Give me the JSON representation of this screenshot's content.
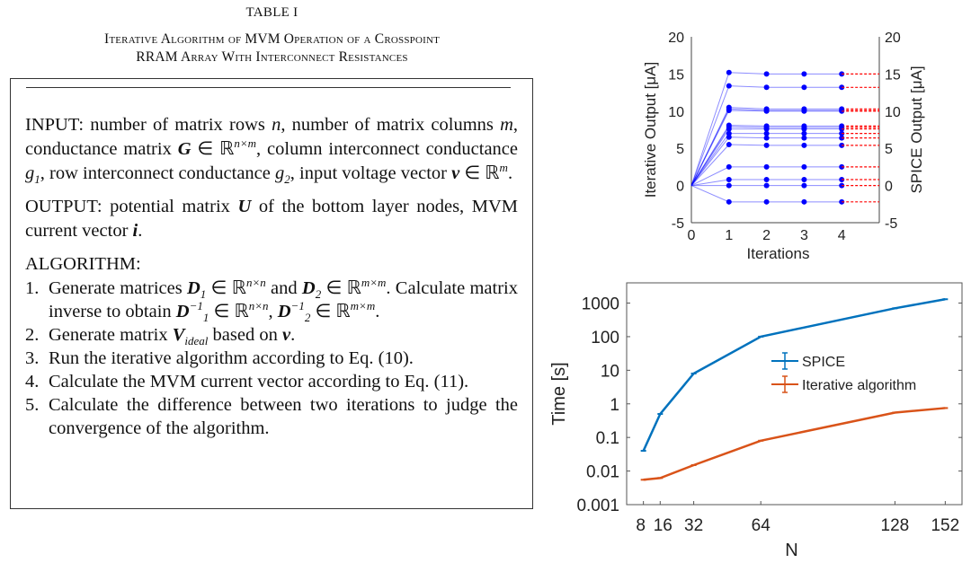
{
  "table": {
    "label": "TABLE I",
    "title_line1": "Iterative Algorithm of MVM Operation of a Crosspoint",
    "title_line2": "RRAM Array With Interconnect Resistances",
    "paragraphs": [
      [
        [
          "t",
          "INPUT: number of matrix rows "
        ],
        [
          "i",
          "n"
        ],
        [
          "t",
          ", number of matrix columns "
        ],
        [
          "i",
          "m"
        ],
        [
          "t",
          ", conductance matrix "
        ],
        [
          "b",
          "G"
        ],
        [
          "t",
          " ∈ ℝ"
        ],
        [
          "sup",
          "n×m"
        ],
        [
          "t",
          ", column interconnect conductance "
        ],
        [
          "i",
          "g"
        ],
        [
          "sub",
          "1"
        ],
        [
          "t",
          ", row interconnect conductance "
        ],
        [
          "i",
          "g"
        ],
        [
          "sub",
          "2"
        ],
        [
          "t",
          ", input voltage vector "
        ],
        [
          "b",
          "v"
        ],
        [
          "t",
          " ∈ ℝ"
        ],
        [
          "sup",
          "m"
        ],
        [
          "t",
          "."
        ]
      ],
      [
        [
          "t",
          "OUTPUT: potential matrix "
        ],
        [
          "b",
          "U"
        ],
        [
          "t",
          " of the bottom layer nodes, MVM current vector "
        ],
        [
          "b",
          "i"
        ],
        [
          "t",
          "."
        ]
      ],
      [
        [
          "t",
          "ALGORITHM:"
        ]
      ]
    ],
    "steps": [
      {
        "num": "1.",
        "segments": [
          [
            "t",
            "Generate matrices "
          ],
          [
            "b",
            "D"
          ],
          [
            "sub",
            "1"
          ],
          [
            "t",
            " ∈ ℝ"
          ],
          [
            "sup",
            "n×n"
          ],
          [
            "t",
            " and "
          ],
          [
            "b",
            "D"
          ],
          [
            "sub",
            "2"
          ],
          [
            "t",
            " ∈ ℝ"
          ],
          [
            "sup",
            "m×m"
          ],
          [
            "t",
            ". Calculate matrix inverse to obtain "
          ],
          [
            "b",
            "D"
          ],
          [
            "sup",
            "−1"
          ],
          [
            "sub",
            "1"
          ],
          [
            "t",
            " ∈ ℝ"
          ],
          [
            "sup",
            "n×n"
          ],
          [
            "t",
            ", "
          ],
          [
            "b",
            "D"
          ],
          [
            "sup",
            "−1"
          ],
          [
            "sub",
            "2"
          ],
          [
            "t",
            " ∈ ℝ"
          ],
          [
            "sup",
            "m×m"
          ],
          [
            "t",
            "."
          ]
        ]
      },
      {
        "num": "2.",
        "segments": [
          [
            "t",
            "Generate matrix "
          ],
          [
            "b",
            "V"
          ],
          [
            "sub",
            "ideal"
          ],
          [
            "t",
            " based on "
          ],
          [
            "b",
            "v"
          ],
          [
            "t",
            "."
          ]
        ]
      },
      {
        "num": "3.",
        "segments": [
          [
            "t",
            "Run the iterative algorithm according to Eq. (10)."
          ]
        ]
      },
      {
        "num": "4.",
        "segments": [
          [
            "t",
            "Calculate the MVM current vector according to Eq. (11)."
          ]
        ]
      },
      {
        "num": "5.",
        "segments": [
          [
            "t",
            "Calculate the difference between two iterations to judge the convergence of the algorithm."
          ]
        ]
      }
    ]
  },
  "chart_data": [
    {
      "type": "line",
      "xlabel": "Iterations",
      "ylabel": "Iterative Output [μA]",
      "y2label": "SPICE Output [μA]",
      "xlim": [
        0,
        5
      ],
      "ylim": [
        -5,
        20
      ],
      "xticks": [
        0,
        1,
        2,
        3,
        4
      ],
      "yticks": [
        -5,
        0,
        5,
        10,
        15,
        20
      ],
      "x": [
        0,
        1,
        2,
        3,
        4
      ],
      "series_color": "#0000ff",
      "spice_color": "#ff0000",
      "series": [
        {
          "values": [
            0,
            15.2,
            15.0,
            15.0,
            15.0
          ],
          "spice": 15.0
        },
        {
          "values": [
            0,
            13.4,
            13.2,
            13.2,
            13.2
          ],
          "spice": 13.2
        },
        {
          "values": [
            0,
            10.5,
            10.3,
            10.3,
            10.3
          ],
          "spice": 10.3
        },
        {
          "values": [
            0,
            10.3,
            10.1,
            10.1,
            10.1
          ],
          "spice": 10.1
        },
        {
          "values": [
            0,
            10.1,
            10.0,
            10.0,
            10.0
          ],
          "spice": 10.0
        },
        {
          "values": [
            0,
            8.1,
            8.0,
            8.0,
            8.0
          ],
          "spice": 8.0
        },
        {
          "values": [
            0,
            7.9,
            7.8,
            7.8,
            7.8
          ],
          "spice": 7.8
        },
        {
          "values": [
            0,
            7.6,
            7.6,
            7.6,
            7.6
          ],
          "spice": 7.6
        },
        {
          "values": [
            0,
            7.0,
            7.0,
            7.0,
            7.0
          ],
          "spice": 7.0
        },
        {
          "values": [
            0,
            6.5,
            6.4,
            6.4,
            6.4
          ],
          "spice": 6.4
        },
        {
          "values": [
            0,
            5.5,
            5.4,
            5.4,
            5.4
          ],
          "spice": 5.4
        },
        {
          "values": [
            0,
            2.5,
            2.5,
            2.5,
            2.5
          ],
          "spice": 2.5
        },
        {
          "values": [
            0,
            0.8,
            0.8,
            0.8,
            0.8
          ],
          "spice": 0.8
        },
        {
          "values": [
            0,
            0.0,
            0.0,
            0.0,
            0.0
          ],
          "spice": 0.0
        },
        {
          "values": [
            0,
            -2.2,
            -2.2,
            -2.2,
            -2.2
          ],
          "spice": -2.2
        }
      ]
    },
    {
      "type": "line",
      "xlabel": "N",
      "ylabel": "Time [s]",
      "yscale": "log",
      "xlim": [
        0,
        160
      ],
      "ylim": [
        0.001,
        4000
      ],
      "xticks": [
        8,
        16,
        32,
        64,
        128,
        152
      ],
      "xticklabels": [
        "8",
        "16",
        "32",
        "64",
        "128",
        "152"
      ],
      "yticks": [
        0.001,
        0.01,
        0.1,
        1,
        10,
        100,
        1000
      ],
      "yticklabels": [
        "0.001",
        "0.01",
        "0.1",
        "1",
        "10",
        "100",
        "1000"
      ],
      "x": [
        8,
        16,
        32,
        64,
        128,
        152
      ],
      "legend": "center-right",
      "series": [
        {
          "name": "SPICE",
          "color": "#0072bd",
          "values": [
            0.04,
            0.5,
            8,
            100,
            700,
            1300
          ]
        },
        {
          "name": "Iterative algorithm",
          "color": "#d95319",
          "values": [
            0.0055,
            0.0062,
            0.015,
            0.08,
            0.55,
            0.75
          ]
        }
      ]
    }
  ]
}
